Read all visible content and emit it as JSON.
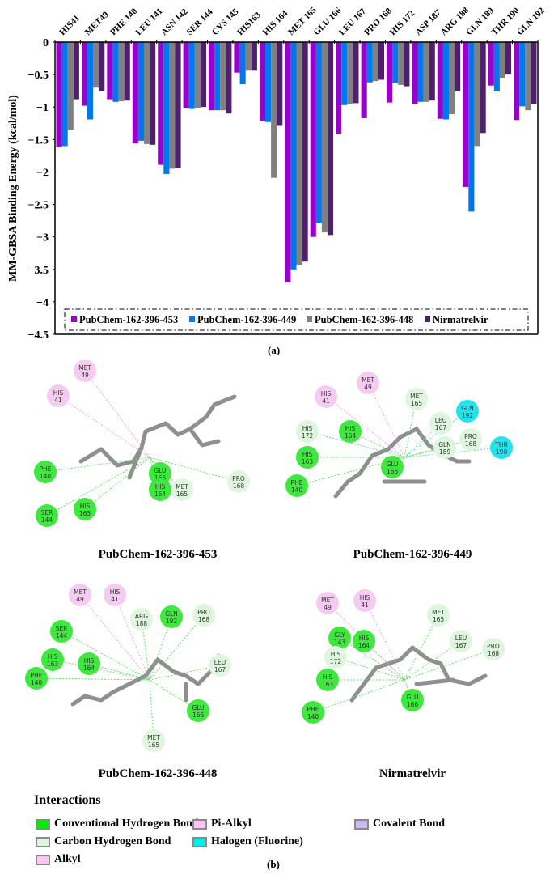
{
  "chart_data": {
    "type": "bar",
    "title": "",
    "xlabel": "",
    "ylabel": "MM-GBSA Binding Energy (kcal/mol)",
    "ylim": [
      -4.5,
      0
    ],
    "yticks": [
      0,
      -0.5,
      -1,
      -1.5,
      -2,
      -2.5,
      -3,
      -3.5,
      -4,
      -4.5
    ],
    "ytick_labels": [
      "0",
      "−0.5",
      "−1",
      "−1.5",
      "−2",
      "−2.5",
      "−3",
      "−3.5",
      "−4",
      "−4.5"
    ],
    "x_axis_position": "top",
    "legend_position": "bottom-inside (dash-dot box)",
    "grid": false,
    "categories": [
      "HIS41",
      "MET49",
      "PHE 140",
      "LEU 141",
      "ASN 142",
      "SER 144",
      "CYS 145",
      "HIS163",
      "HIS 164",
      "MET 165",
      "GLU 166",
      "LEU 167",
      "PRO 168",
      "HIS 172",
      "ASP 187",
      "ARG 188",
      "GLN 189",
      "THR 190",
      "GLN 192"
    ],
    "series": [
      {
        "name": "PubChem-162-396-453",
        "color": "#9900cc",
        "values": [
          -1.62,
          -0.98,
          -0.88,
          -1.56,
          -1.89,
          -1.02,
          -1.05,
          -0.47,
          -1.22,
          -3.7,
          -3.0,
          -1.42,
          -1.17,
          -0.93,
          -0.95,
          -1.18,
          -2.23,
          -0.67,
          -1.2
        ]
      },
      {
        "name": "PubChem-162-396-449",
        "color": "#0077ee",
        "values": [
          -1.6,
          -1.19,
          -0.92,
          -1.52,
          -2.03,
          -1.03,
          -1.05,
          -0.65,
          -1.23,
          -3.5,
          -2.78,
          -0.97,
          -0.62,
          -0.63,
          -0.92,
          -1.19,
          -2.61,
          -0.76,
          -0.99
        ]
      },
      {
        "name": "PubChem-162-396-448",
        "color": "#808080",
        "values": [
          -1.35,
          -0.7,
          -0.91,
          -1.57,
          -1.95,
          -1.02,
          -1.05,
          -0.44,
          -2.09,
          -3.43,
          -2.93,
          -0.96,
          -0.6,
          -0.66,
          -0.92,
          -1.11,
          -1.6,
          -0.55,
          -1.05
        ]
      },
      {
        "name": "Nirmatrelvir",
        "color": "#4f1f6e",
        "values": [
          -0.88,
          -0.75,
          -0.9,
          -1.58,
          -1.94,
          -1.0,
          -1.1,
          -0.44,
          -1.29,
          -3.38,
          -2.97,
          -0.94,
          -0.58,
          -0.68,
          -0.9,
          -0.75,
          -1.4,
          -0.5,
          -0.95
        ]
      }
    ],
    "panel_label": "(a)"
  },
  "interaction_diagrams": [
    {
      "ligand": "PubChem-162-396-453",
      "residues": [
        {
          "name": "MET",
          "num": "49",
          "type": "alkyl"
        },
        {
          "name": "HIS",
          "num": "41",
          "type": "alkyl"
        },
        {
          "name": "PHE",
          "num": "140",
          "type": "conventional_hbond"
        },
        {
          "name": "SER",
          "num": "144",
          "type": "conventional_hbond"
        },
        {
          "name": "HIS",
          "num": "163",
          "type": "conventional_hbond"
        },
        {
          "name": "GLU",
          "num": "166",
          "type": "conventional_hbond"
        },
        {
          "name": "HIS",
          "num": "164",
          "type": "conventional_hbond"
        },
        {
          "name": "MET",
          "num": "165",
          "type": "carbon_hbond"
        },
        {
          "name": "PRO",
          "num": "168",
          "type": "carbon_hbond"
        }
      ]
    },
    {
      "ligand": "PubChem-162-396-449",
      "residues": [
        {
          "name": "MET",
          "num": "49",
          "type": "alkyl"
        },
        {
          "name": "HIS",
          "num": "41",
          "type": "alkyl"
        },
        {
          "name": "MET",
          "num": "165",
          "type": "carbon_hbond"
        },
        {
          "name": "GLN",
          "num": "192",
          "type": "halogen"
        },
        {
          "name": "HIS",
          "num": "172",
          "type": "carbon_hbond"
        },
        {
          "name": "HIS",
          "num": "164",
          "type": "conventional_hbond"
        },
        {
          "name": "LEU",
          "num": "167",
          "type": "carbon_hbond"
        },
        {
          "name": "PRO",
          "num": "168",
          "type": "carbon_hbond"
        },
        {
          "name": "GLN",
          "num": "189",
          "type": "carbon_hbond"
        },
        {
          "name": "THR",
          "num": "190",
          "type": "halogen"
        },
        {
          "name": "HIS",
          "num": "163",
          "type": "conventional_hbond"
        },
        {
          "name": "GLU",
          "num": "166",
          "type": "conventional_hbond"
        },
        {
          "name": "PHE",
          "num": "140",
          "type": "conventional_hbond"
        }
      ]
    },
    {
      "ligand": "PubChem-162-396-448",
      "residues": [
        {
          "name": "MET",
          "num": "49",
          "type": "alkyl"
        },
        {
          "name": "HIS",
          "num": "41",
          "type": "alkyl"
        },
        {
          "name": "ARG",
          "num": "188",
          "type": "carbon_hbond"
        },
        {
          "name": "GLN",
          "num": "192",
          "type": "conventional_hbond"
        },
        {
          "name": "PRO",
          "num": "168",
          "type": "carbon_hbond"
        },
        {
          "name": "SER",
          "num": "144",
          "type": "conventional_hbond"
        },
        {
          "name": "HIS",
          "num": "163",
          "type": "conventional_hbond"
        },
        {
          "name": "HIS",
          "num": "164",
          "type": "conventional_hbond"
        },
        {
          "name": "LEU",
          "num": "167",
          "type": "carbon_hbond"
        },
        {
          "name": "PHE",
          "num": "140",
          "type": "conventional_hbond"
        },
        {
          "name": "GLU",
          "num": "166",
          "type": "conventional_hbond"
        },
        {
          "name": "MET",
          "num": "165",
          "type": "carbon_hbond"
        }
      ]
    },
    {
      "ligand": "Nirmatrelvir",
      "residues": [
        {
          "name": "MET",
          "num": "49",
          "type": "alkyl"
        },
        {
          "name": "HIS",
          "num": "41",
          "type": "alkyl"
        },
        {
          "name": "MET",
          "num": "165",
          "type": "carbon_hbond"
        },
        {
          "name": "GLY",
          "num": "143",
          "type": "conventional_hbond"
        },
        {
          "name": "HIS",
          "num": "164",
          "type": "conventional_hbond"
        },
        {
          "name": "LEU",
          "num": "167",
          "type": "carbon_hbond"
        },
        {
          "name": "PRO",
          "num": "168",
          "type": "carbon_hbond"
        },
        {
          "name": "HIS",
          "num": "172",
          "type": "carbon_hbond"
        },
        {
          "name": "HIS",
          "num": "163",
          "type": "conventional_hbond"
        },
        {
          "name": "PHE",
          "num": "140",
          "type": "conventional_hbond"
        },
        {
          "name": "GLU",
          "num": "166",
          "type": "conventional_hbond"
        }
      ]
    }
  ],
  "interaction_legend": {
    "title": "Interactions",
    "items": [
      {
        "label": "Conventional Hydrogen Bond",
        "color": "#00ee00"
      },
      {
        "label": "Carbon Hydrogen Bond",
        "color": "#dcf8dc"
      },
      {
        "label": "Alkyl",
        "color": "#fbc6f5"
      },
      {
        "label": "Pi-Alkyl",
        "color": "#fbc6f5"
      },
      {
        "label": "Halogen (Fluorine)",
        "color": "#00eeee"
      },
      {
        "label": "Covalent Bond",
        "color": "#cbb8f2"
      }
    ]
  },
  "panel_labels": {
    "a": "(a)",
    "b": "(b)"
  },
  "residue_colors": {
    "conventional_hbond": "#3ee83e",
    "carbon_hbond": "#def6de",
    "alkyl": "#f6cbf1",
    "halogen": "#22e4ef"
  }
}
